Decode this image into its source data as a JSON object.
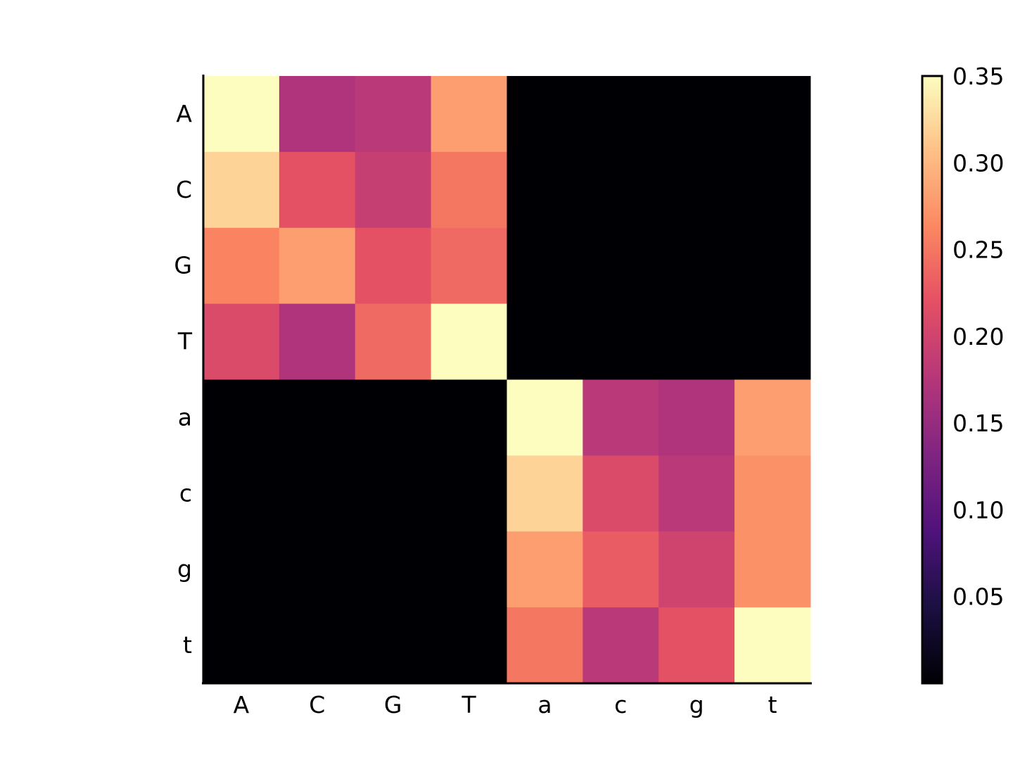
{
  "chart_data": {
    "type": "heatmap",
    "title": "",
    "xlabel": "",
    "ylabel": "",
    "x_categories": [
      "A",
      "C",
      "G",
      "T",
      "a",
      "c",
      "g",
      "t"
    ],
    "y_categories": [
      "A",
      "C",
      "G",
      "T",
      "a",
      "c",
      "g",
      "t"
    ],
    "values": [
      [
        0.35,
        0.17,
        0.18,
        0.28,
        0.0,
        0.0,
        0.0,
        0.0
      ],
      [
        0.32,
        0.22,
        0.19,
        0.25,
        0.0,
        0.0,
        0.0,
        0.0
      ],
      [
        0.26,
        0.28,
        0.22,
        0.24,
        0.0,
        0.0,
        0.0,
        0.0
      ],
      [
        0.21,
        0.17,
        0.24,
        0.35,
        0.0,
        0.0,
        0.0,
        0.0
      ],
      [
        0.0,
        0.0,
        0.0,
        0.0,
        0.35,
        0.18,
        0.17,
        0.28
      ],
      [
        0.0,
        0.0,
        0.0,
        0.0,
        0.32,
        0.21,
        0.18,
        0.27
      ],
      [
        0.0,
        0.0,
        0.0,
        0.0,
        0.28,
        0.23,
        0.2,
        0.27
      ],
      [
        0.0,
        0.0,
        0.0,
        0.0,
        0.25,
        0.18,
        0.22,
        0.35
      ]
    ],
    "colormap": "magma",
    "vmin": 0.0,
    "vmax": 0.35,
    "colorbar": {
      "ticks": [
        0.05,
        0.1,
        0.15,
        0.2,
        0.25,
        0.3,
        0.35
      ],
      "tick_labels": [
        "0.05",
        "0.10",
        "0.15",
        "0.20",
        "0.25",
        "0.30",
        "0.35"
      ]
    },
    "grid": false,
    "colorbar_position": "right"
  }
}
